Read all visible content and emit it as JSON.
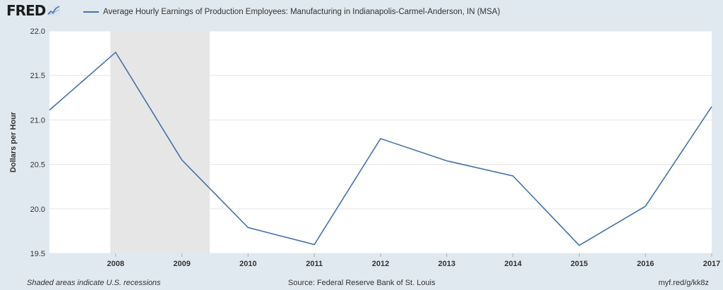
{
  "header": {
    "logo_text": "FRED",
    "logo_icon": "trend-graph-icon",
    "legend_label": "Average Hourly Earnings of Production Employees: Manufacturing in Indianapolis-Carmel-Anderson, IN (MSA)"
  },
  "footer": {
    "recession_note": "Shaded areas indicate U.S. recessions",
    "source": "Source: Federal Reserve Bank of St. Louis",
    "short_url": "myf.red/g/kk8z"
  },
  "colors": {
    "background": "#e1e9f0",
    "plot_background": "#ffffff",
    "series_line": "#4572a7",
    "recession_shade": "#e6e6e6",
    "gridline": "#e6e6e6"
  },
  "chart_data": {
    "type": "line",
    "title": "",
    "xlabel": "",
    "ylabel": "Dollars per Hour",
    "grid": true,
    "legend_placement": "top",
    "xlim": [
      2007.0,
      2017.0
    ],
    "ylim": [
      19.5,
      22.0
    ],
    "yticks": [
      "19.5",
      "20.0",
      "20.5",
      "21.0",
      "21.5",
      "22.0"
    ],
    "xticks": [
      "2008",
      "2009",
      "2010",
      "2011",
      "2012",
      "2013",
      "2014",
      "2015",
      "2016",
      "2017"
    ],
    "recessions": [
      {
        "start": 2007.92,
        "end": 2009.42
      }
    ],
    "series": [
      {
        "name": "Average Hourly Earnings of Production Employees: Manufacturing in Indianapolis-Carmel-Anderson, IN (MSA)",
        "x": [
          2007,
          2008,
          2009,
          2010,
          2011,
          2012,
          2013,
          2014,
          2015,
          2016,
          2017
        ],
        "values": [
          21.11,
          21.76,
          20.55,
          19.79,
          19.6,
          20.79,
          20.54,
          20.37,
          19.59,
          20.03,
          21.15
        ]
      }
    ]
  }
}
